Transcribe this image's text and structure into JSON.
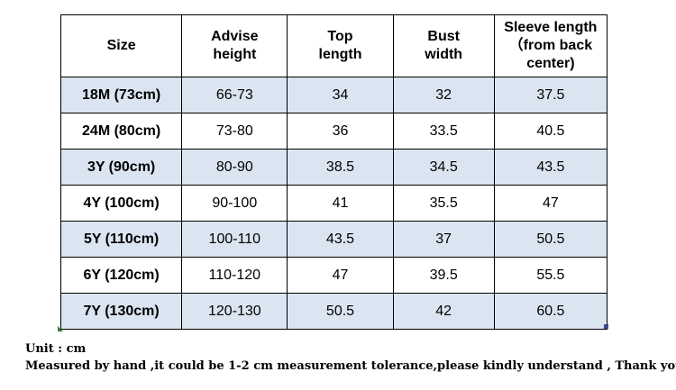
{
  "table": {
    "headers": {
      "size": "Size",
      "height": [
        "Advise",
        "height"
      ],
      "top": [
        "Top",
        "length"
      ],
      "bust": [
        "Bust",
        "width"
      ],
      "sleeve": [
        "Sleeve length",
        "（from back",
        "center)"
      ]
    },
    "rows": [
      {
        "size": "18M (73cm)",
        "height": "66-73",
        "top": "34",
        "bust": "32",
        "sleeve": "37.5"
      },
      {
        "size": "24M (80cm)",
        "height": "73-80",
        "top": "36",
        "bust": "33.5",
        "sleeve": "40.5"
      },
      {
        "size": "3Y (90cm)",
        "height": "80-90",
        "top": "38.5",
        "bust": "34.5",
        "sleeve": "43.5"
      },
      {
        "size": "4Y (100cm)",
        "height": "90-100",
        "top": "41",
        "bust": "35.5",
        "sleeve": "47"
      },
      {
        "size": "5Y (110cm)",
        "height": "100-110",
        "top": "43.5",
        "bust": "37",
        "sleeve": "50.5"
      },
      {
        "size": "6Y (120cm)",
        "height": "110-120",
        "top": "47",
        "bust": "39.5",
        "sleeve": "55.5"
      },
      {
        "size": "7Y (130cm)",
        "height": "120-130",
        "top": "50.5",
        "bust": "42",
        "sleeve": "60.5"
      }
    ]
  },
  "notes": {
    "unit": "Unit : cm",
    "tolerance": "Measured by hand ,it could be 1-2 cm measurement tolerance,please kindly understand , Thank you !"
  },
  "colors": {
    "shaded_row": "#dbe5f1",
    "border": "#000000"
  }
}
